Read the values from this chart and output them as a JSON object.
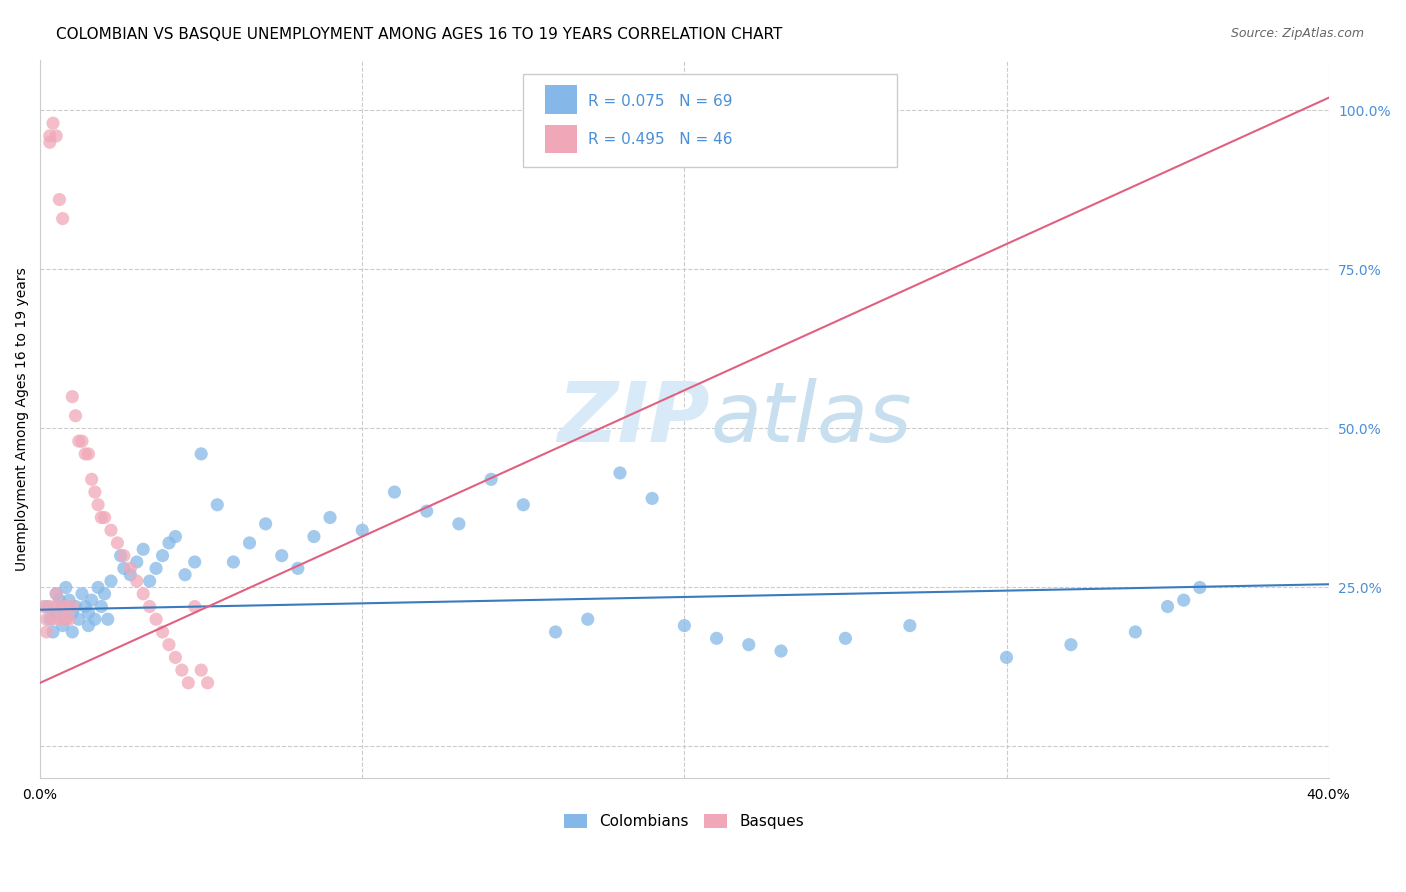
{
  "title": "COLOMBIAN VS BASQUE UNEMPLOYMENT AMONG AGES 16 TO 19 YEARS CORRELATION CHART",
  "source": "Source: ZipAtlas.com",
  "ylabel": "Unemployment Among Ages 16 to 19 years",
  "xlim": [
    0.0,
    0.4
  ],
  "ylim": [
    -0.05,
    1.08
  ],
  "ytick_vals": [
    0.0,
    0.25,
    0.5,
    0.75,
    1.0
  ],
  "ytick_labels": [
    "",
    "25.0%",
    "50.0%",
    "75.0%",
    "100.0%"
  ],
  "xtick_vals": [
    0.0,
    0.1,
    0.2,
    0.3,
    0.4
  ],
  "xtick_labels": [
    "0.0%",
    "",
    "",
    "",
    "40.0%"
  ],
  "r_colombians": 0.075,
  "n_colombians": 69,
  "r_basques": 0.495,
  "n_basques": 46,
  "colombian_color": "#85b8e8",
  "basque_color": "#f0a8b8",
  "colombian_line_color": "#3a7abf",
  "basque_line_color": "#e06080",
  "tick_label_color": "#4a90d9",
  "background_color": "#ffffff",
  "watermark_color": "#d8eaf8",
  "title_fontsize": 11,
  "source_fontsize": 9,
  "colombians_x": [
    0.002,
    0.003,
    0.004,
    0.005,
    0.005,
    0.006,
    0.007,
    0.007,
    0.008,
    0.008,
    0.009,
    0.01,
    0.01,
    0.011,
    0.012,
    0.013,
    0.014,
    0.015,
    0.015,
    0.016,
    0.017,
    0.018,
    0.019,
    0.02,
    0.021,
    0.022,
    0.025,
    0.026,
    0.028,
    0.03,
    0.032,
    0.034,
    0.036,
    0.038,
    0.04,
    0.042,
    0.045,
    0.048,
    0.05,
    0.055,
    0.06,
    0.065,
    0.07,
    0.075,
    0.08,
    0.085,
    0.09,
    0.1,
    0.11,
    0.12,
    0.13,
    0.14,
    0.15,
    0.16,
    0.17,
    0.18,
    0.19,
    0.2,
    0.21,
    0.22,
    0.23,
    0.25,
    0.27,
    0.3,
    0.32,
    0.34,
    0.35,
    0.355,
    0.36
  ],
  "colombians_y": [
    0.22,
    0.2,
    0.18,
    0.24,
    0.21,
    0.23,
    0.19,
    0.22,
    0.25,
    0.2,
    0.23,
    0.21,
    0.18,
    0.22,
    0.2,
    0.24,
    0.22,
    0.19,
    0.21,
    0.23,
    0.2,
    0.25,
    0.22,
    0.24,
    0.2,
    0.26,
    0.3,
    0.28,
    0.27,
    0.29,
    0.31,
    0.26,
    0.28,
    0.3,
    0.32,
    0.33,
    0.27,
    0.29,
    0.46,
    0.38,
    0.29,
    0.32,
    0.35,
    0.3,
    0.28,
    0.33,
    0.36,
    0.34,
    0.4,
    0.37,
    0.35,
    0.42,
    0.38,
    0.18,
    0.2,
    0.43,
    0.39,
    0.19,
    0.17,
    0.16,
    0.15,
    0.17,
    0.19,
    0.14,
    0.16,
    0.18,
    0.22,
    0.23,
    0.25
  ],
  "basques_x": [
    0.001,
    0.002,
    0.002,
    0.003,
    0.003,
    0.003,
    0.004,
    0.004,
    0.005,
    0.005,
    0.005,
    0.006,
    0.006,
    0.007,
    0.007,
    0.008,
    0.008,
    0.009,
    0.01,
    0.01,
    0.011,
    0.012,
    0.013,
    0.014,
    0.015,
    0.016,
    0.017,
    0.018,
    0.019,
    0.02,
    0.022,
    0.024,
    0.026,
    0.028,
    0.03,
    0.032,
    0.034,
    0.036,
    0.038,
    0.04,
    0.042,
    0.044,
    0.046,
    0.048,
    0.05,
    0.052
  ],
  "basques_y": [
    0.22,
    0.2,
    0.18,
    0.96,
    0.95,
    0.22,
    0.98,
    0.2,
    0.96,
    0.24,
    0.22,
    0.86,
    0.2,
    0.83,
    0.22,
    0.22,
    0.2,
    0.2,
    0.55,
    0.22,
    0.52,
    0.48,
    0.48,
    0.46,
    0.46,
    0.42,
    0.4,
    0.38,
    0.36,
    0.36,
    0.34,
    0.32,
    0.3,
    0.28,
    0.26,
    0.24,
    0.22,
    0.2,
    0.18,
    0.16,
    0.14,
    0.12,
    0.1,
    0.22,
    0.12,
    0.1
  ],
  "col_line_x": [
    0.0,
    0.4
  ],
  "col_line_y": [
    0.215,
    0.255
  ],
  "bas_line_x": [
    0.0,
    0.4
  ],
  "bas_line_y": [
    0.1,
    1.02
  ]
}
